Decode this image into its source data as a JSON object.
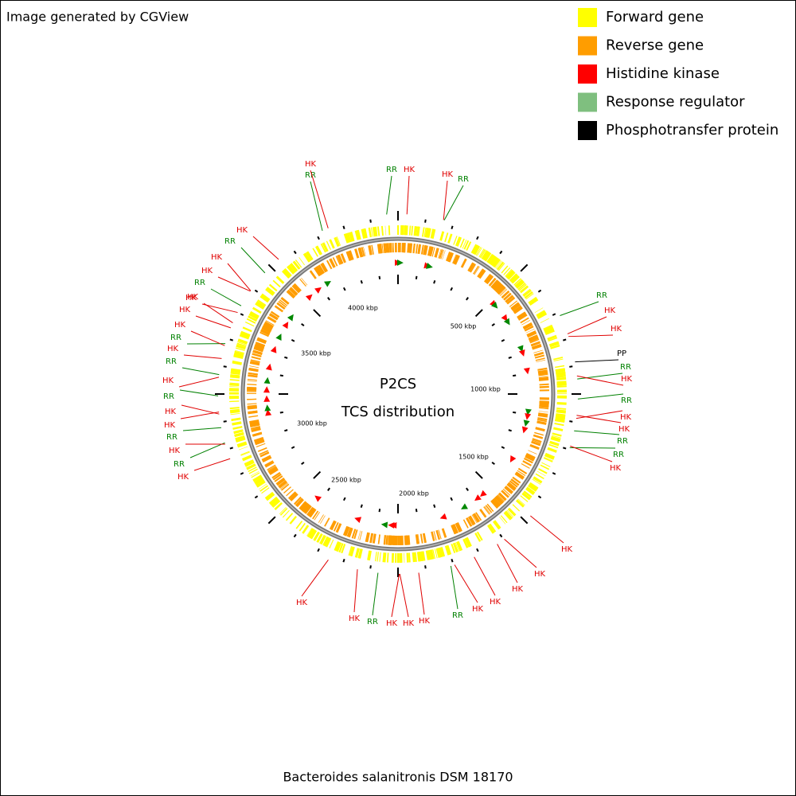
{
  "header": {
    "credit": "Image generated by CGView"
  },
  "legend": [
    {
      "label": "Forward gene",
      "color": "#ffff00"
    },
    {
      "label": "Reverse gene",
      "color": "#ff9d00"
    },
    {
      "label": "Histidine kinase",
      "color": "#ff0000"
    },
    {
      "label": "Response regulator",
      "color": "#7fbf7f"
    },
    {
      "label": "Phosphotransfer protein",
      "color": "#000000"
    }
  ],
  "center": {
    "title": "P2CS",
    "subtitle": "TCS distribution"
  },
  "scale": {
    "labels": [
      "500 kbp",
      "1000 kbp",
      "1500 kbp",
      "2000 kbp",
      "2500 kbp",
      "3000 kbp",
      "3500 kbp",
      "4000 kbp"
    ]
  },
  "features": [
    {
      "label": "RR",
      "color": "#008000"
    },
    {
      "label": "HK",
      "color": "#e00000"
    },
    {
      "label": "HK",
      "color": "#e00000"
    },
    {
      "label": "RR",
      "color": "#008000"
    },
    {
      "label": "RR",
      "color": "#008000"
    },
    {
      "label": "HK",
      "color": "#e00000"
    },
    {
      "label": "HK",
      "color": "#e00000"
    },
    {
      "label": "PP",
      "color": "#000000"
    },
    {
      "label": "RR",
      "color": "#008000"
    },
    {
      "label": "HK",
      "color": "#e00000"
    },
    {
      "label": "RR",
      "color": "#008000"
    },
    {
      "label": "HK",
      "color": "#e00000"
    },
    {
      "label": "HK",
      "color": "#e00000"
    },
    {
      "label": "RR",
      "color": "#008000"
    },
    {
      "label": "RR",
      "color": "#008000"
    },
    {
      "label": "HK",
      "color": "#e00000"
    },
    {
      "label": "HK",
      "color": "#e00000"
    },
    {
      "label": "HK",
      "color": "#e00000"
    },
    {
      "label": "HK",
      "color": "#e00000"
    },
    {
      "label": "HK",
      "color": "#e00000"
    },
    {
      "label": "HK",
      "color": "#e00000"
    },
    {
      "label": "RR",
      "color": "#008000"
    },
    {
      "label": "HK",
      "color": "#e00000"
    },
    {
      "label": "HK",
      "color": "#e00000"
    },
    {
      "label": "HK",
      "color": "#e00000"
    },
    {
      "label": "RR",
      "color": "#008000"
    },
    {
      "label": "HK",
      "color": "#e00000"
    },
    {
      "label": "HK",
      "color": "#e00000"
    },
    {
      "label": "HK",
      "color": "#e00000"
    },
    {
      "label": "RR",
      "color": "#008000"
    },
    {
      "label": "HK",
      "color": "#e00000"
    },
    {
      "label": "RR",
      "color": "#008000"
    },
    {
      "label": "HK",
      "color": "#e00000"
    },
    {
      "label": "HK",
      "color": "#e00000"
    },
    {
      "label": "RR",
      "color": "#008000"
    },
    {
      "label": "HK",
      "color": "#e00000"
    },
    {
      "label": "RR",
      "color": "#008000"
    },
    {
      "label": "HK",
      "color": "#e00000"
    },
    {
      "label": "RR",
      "color": "#008000"
    },
    {
      "label": "HK",
      "color": "#e00000"
    },
    {
      "label": "HK",
      "color": "#e00000"
    },
    {
      "label": "HK",
      "color": "#e00000"
    },
    {
      "label": "HK",
      "color": "#e00000"
    },
    {
      "label": "RR",
      "color": "#008000"
    },
    {
      "label": "HK",
      "color": "#e00000"
    },
    {
      "label": "HK",
      "color": "#e00000"
    },
    {
      "label": "RR",
      "color": "#008000"
    },
    {
      "label": "HK",
      "color": "#e00000"
    },
    {
      "label": "RR",
      "color": "#008000"
    },
    {
      "label": "HK",
      "color": "#e00000"
    }
  ],
  "footer": {
    "organism": "Bacteroides salanitronis DSM 18170"
  }
}
